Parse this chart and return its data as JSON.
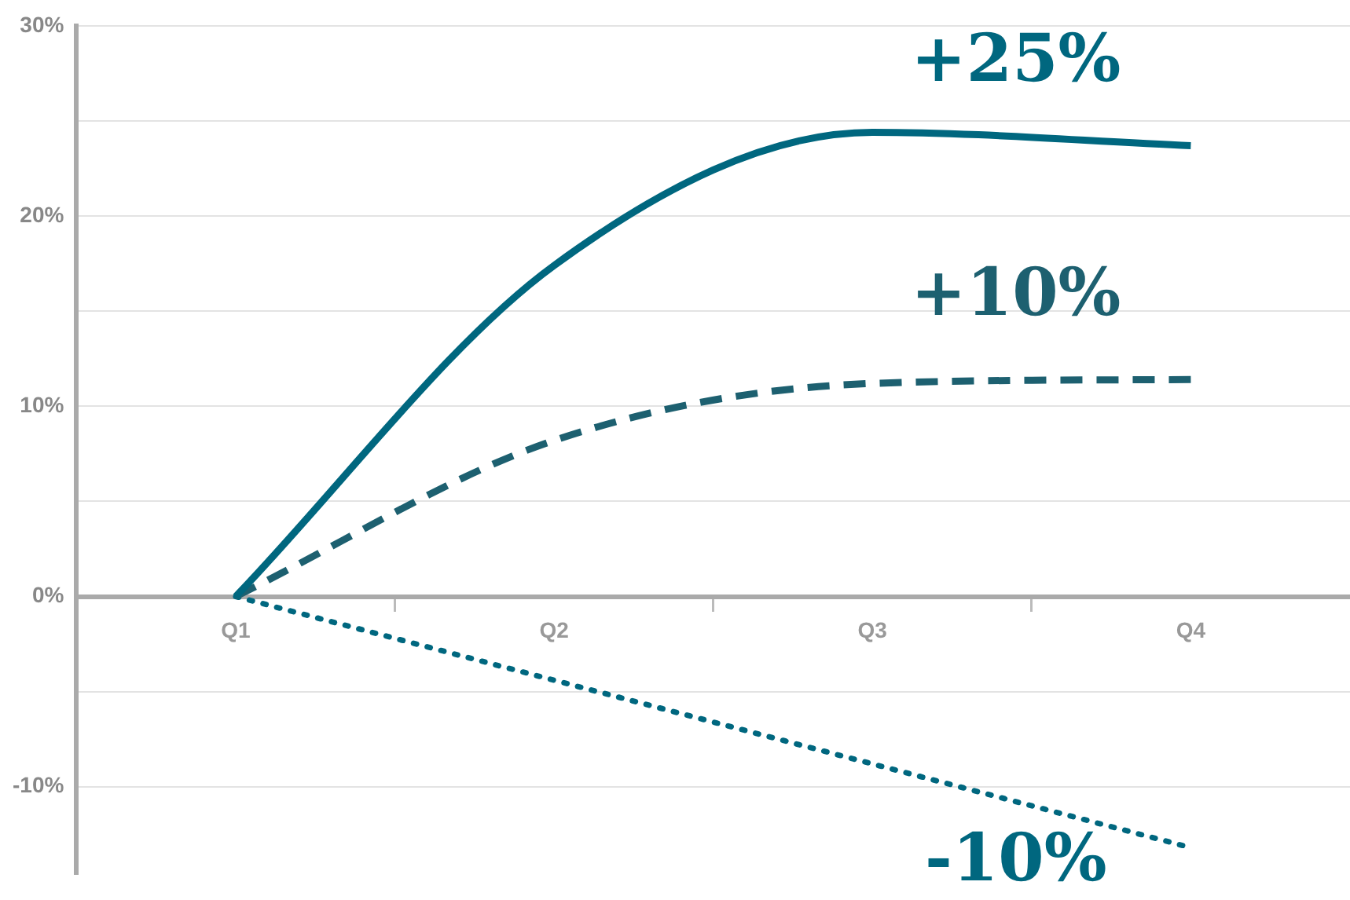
{
  "chart_data": {
    "type": "line",
    "categories": [
      "Q1",
      "Q2",
      "Q3",
      "Q4"
    ],
    "ylim": [
      -14.6,
      30
    ],
    "yticks": [
      {
        "value": -10,
        "label": "-10%"
      },
      {
        "value": -5,
        "label": null
      },
      {
        "value": 0,
        "label": "0%"
      },
      {
        "value": 5,
        "label": null
      },
      {
        "value": 10,
        "label": "10%"
      },
      {
        "value": 15,
        "label": null
      },
      {
        "value": 20,
        "label": "20%"
      },
      {
        "value": 25,
        "label": null
      },
      {
        "value": 30,
        "label": "30%"
      }
    ],
    "series": [
      {
        "color": "#00677f",
        "line_style": "solid",
        "values": [
          0,
          17.4,
          24.4,
          23.7
        ]
      },
      {
        "color": "#1d6070",
        "line_style": "dashed",
        "values": [
          0,
          8.2,
          11.2,
          11.4
        ]
      },
      {
        "color": "#00677f",
        "line_style": "dotted",
        "values": [
          0,
          -4.4,
          -8.8,
          -13.2
        ]
      }
    ],
    "annotations": [
      "+25%",
      "+10%",
      "-10%"
    ],
    "grid": "y",
    "marker": "none",
    "legend": false
  }
}
